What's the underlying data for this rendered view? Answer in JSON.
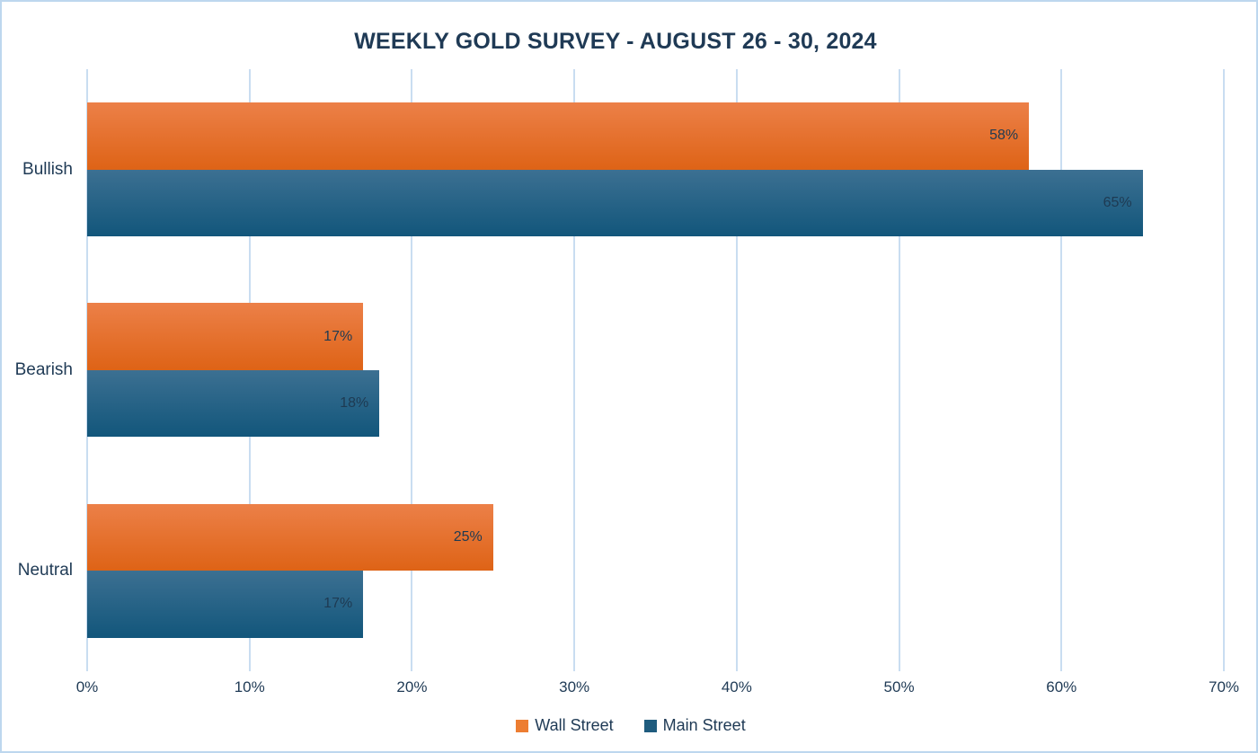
{
  "page": {
    "background": "#FFFFFF",
    "border_color": "#BDD7EE",
    "text_color": "#1F3A55"
  },
  "chart_data": {
    "type": "bar",
    "orientation": "horizontal",
    "title": "WEEKLY GOLD SURVEY - AUGUST 26 - 30, 2024",
    "categories": [
      "Bullish",
      "Bearish",
      "Neutral"
    ],
    "series": [
      {
        "name": "Wall Street",
        "values": [
          58,
          17,
          25
        ],
        "color_top": "#EC8048",
        "color_bottom": "#DE6316",
        "legend_color": "#ED7D31"
      },
      {
        "name": "Main Street",
        "values": [
          65,
          18,
          17
        ],
        "color_top": "#3C7092",
        "color_bottom": "#12567B",
        "legend_color": "#1F5C7E"
      }
    ],
    "value_labels": [
      {
        "category": "Bullish",
        "wall_street": "58%",
        "main_street": "65%"
      },
      {
        "category": "Bearish",
        "wall_street": "17%",
        "main_street": "18%"
      },
      {
        "category": "Neutral",
        "wall_street": "25%",
        "main_street": "17%"
      }
    ],
    "value_suffix": "%",
    "xlim": [
      0,
      70
    ],
    "x_ticks": [
      "0%",
      "10%",
      "20%",
      "30%",
      "40%",
      "50%",
      "60%",
      "70%"
    ],
    "grid": true,
    "gridline_color": "#C9DDF1",
    "label_text_color": "#1E3A52",
    "legend_position": "bottom",
    "legend": [
      {
        "label": "Wall Street",
        "color": "#ED7D31"
      },
      {
        "label": "Main Street",
        "color": "#1F5C7E"
      }
    ]
  }
}
